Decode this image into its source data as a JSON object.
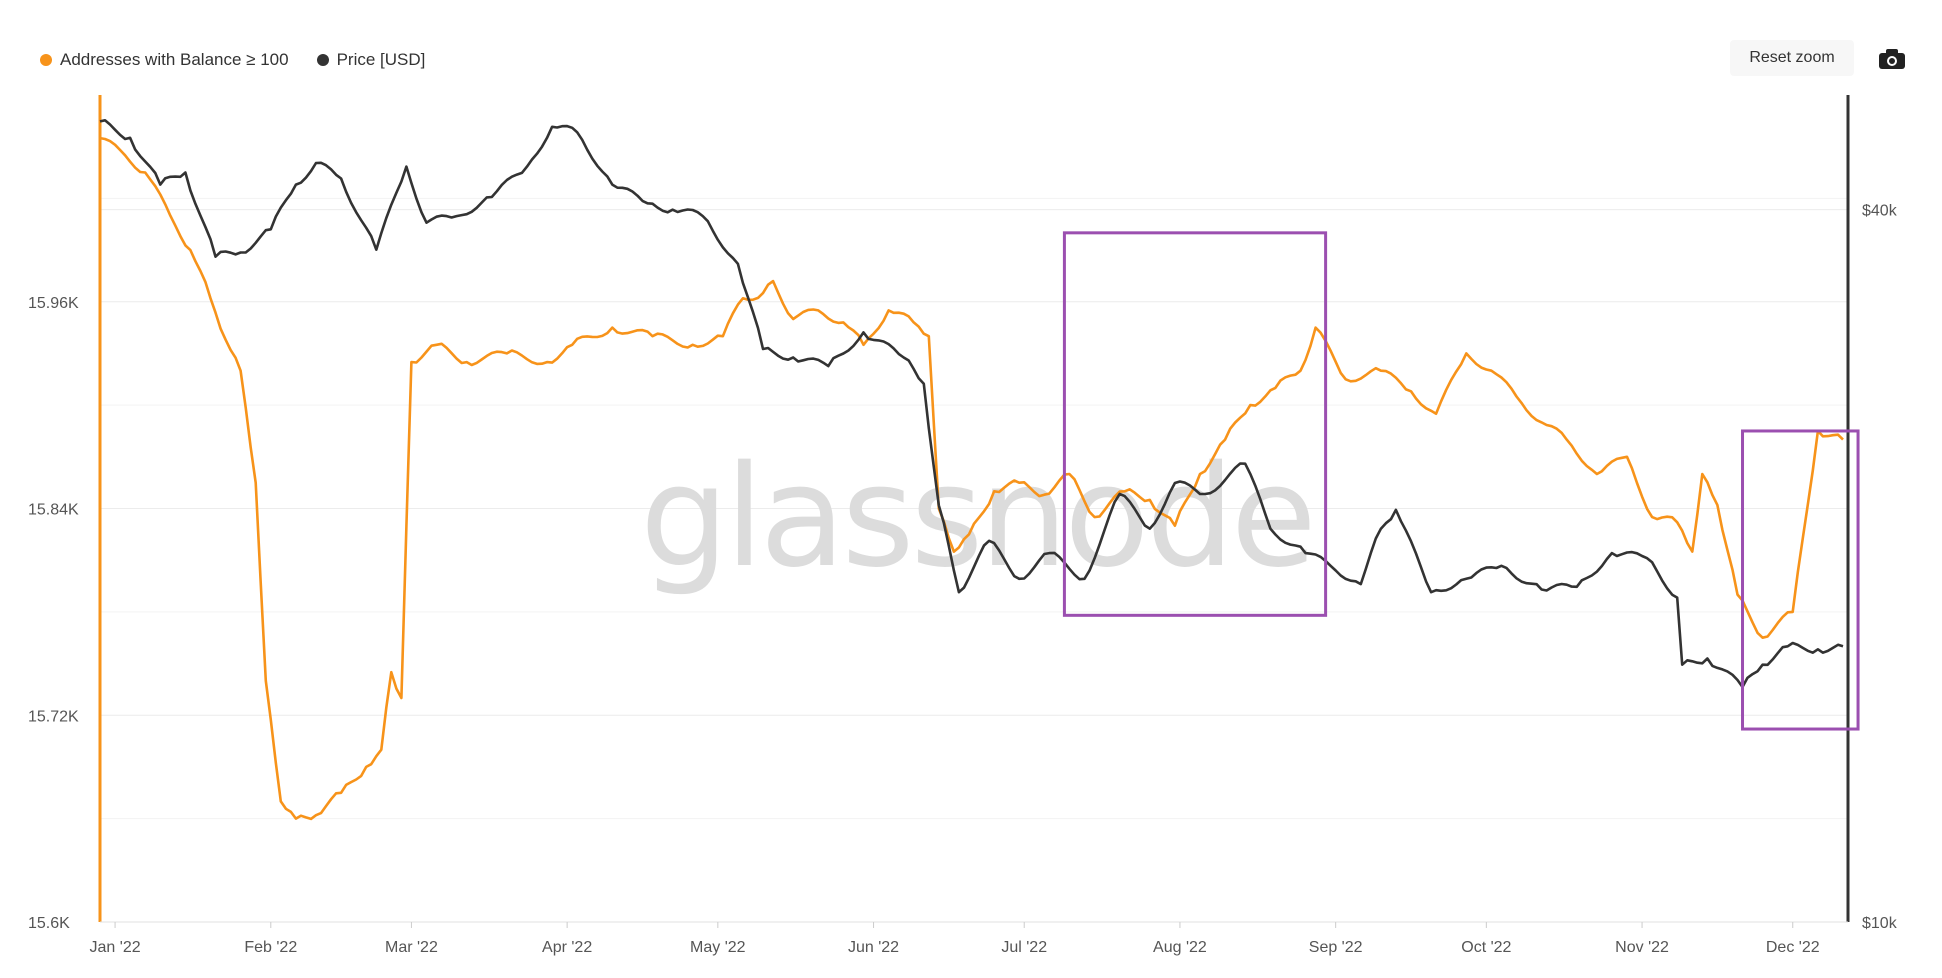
{
  "legend": [
    {
      "label": "Addresses with Balance ≥ 100",
      "color": "#F7931A"
    },
    {
      "label": "Price [USD]",
      "color": "#333333"
    }
  ],
  "controls": {
    "reset_zoom": "Reset zoom",
    "camera_icon": "camera-icon"
  },
  "watermark": "glassnode",
  "chart_data": {
    "type": "line",
    "x_ticks": [
      "Jan '22",
      "Feb '22",
      "Mar '22",
      "Apr '22",
      "May '22",
      "Jun '22",
      "Jul '22",
      "Aug '22",
      "Sep '22",
      "Oct '22",
      "Nov '22",
      "Dec '22"
    ],
    "x_range": [
      "2021-12-29",
      "2022-12-12"
    ],
    "y_left": {
      "ticks": [
        "15.6K",
        "15.72K",
        "15.84K",
        "15.96K"
      ],
      "range": [
        15600,
        16080
      ]
    },
    "y_right": {
      "ticks": [
        "$10k",
        "$40k"
      ],
      "range": [
        10000,
        50000
      ],
      "scale": "log"
    },
    "grid": true,
    "series": [
      {
        "name": "Addresses with Balance ≥ 100",
        "axis": "left",
        "color": "#F7931A",
        "points": [
          [
            "2021-12-29",
            16055
          ],
          [
            "2022-01-03",
            16045
          ],
          [
            "2022-01-07",
            16035
          ],
          [
            "2022-01-12",
            16010
          ],
          [
            "2022-01-16",
            15990
          ],
          [
            "2022-01-20",
            15962
          ],
          [
            "2022-01-23",
            15938
          ],
          [
            "2022-01-26",
            15920
          ],
          [
            "2022-01-29",
            15855
          ],
          [
            "2022-01-31",
            15740
          ],
          [
            "2022-02-03",
            15670
          ],
          [
            "2022-02-06",
            15660
          ],
          [
            "2022-02-10",
            15662
          ],
          [
            "2022-02-15",
            15675
          ],
          [
            "2022-02-20",
            15690
          ],
          [
            "2022-02-23",
            15700
          ],
          [
            "2022-02-25",
            15745
          ],
          [
            "2022-02-27",
            15730
          ],
          [
            "2022-03-01",
            15925
          ],
          [
            "2022-03-06",
            15935
          ],
          [
            "2022-03-12",
            15925
          ],
          [
            "2022-03-20",
            15930
          ],
          [
            "2022-03-28",
            15925
          ],
          [
            "2022-04-02",
            15935
          ],
          [
            "2022-04-10",
            15945
          ],
          [
            "2022-04-18",
            15940
          ],
          [
            "2022-04-26",
            15935
          ],
          [
            "2022-05-02",
            15940
          ],
          [
            "2022-05-06",
            15962
          ],
          [
            "2022-05-10",
            15965
          ],
          [
            "2022-05-12",
            15972
          ],
          [
            "2022-05-16",
            15950
          ],
          [
            "2022-05-21",
            15955
          ],
          [
            "2022-05-26",
            15948
          ],
          [
            "2022-05-30",
            15935
          ],
          [
            "2022-06-04",
            15955
          ],
          [
            "2022-06-09",
            15948
          ],
          [
            "2022-06-12",
            15940
          ],
          [
            "2022-06-14",
            15840
          ],
          [
            "2022-06-17",
            15815
          ],
          [
            "2022-06-20",
            15825
          ],
          [
            "2022-06-25",
            15850
          ],
          [
            "2022-06-30",
            15855
          ],
          [
            "2022-07-05",
            15848
          ],
          [
            "2022-07-10",
            15860
          ],
          [
            "2022-07-15",
            15835
          ],
          [
            "2022-07-21",
            15850
          ],
          [
            "2022-07-26",
            15845
          ],
          [
            "2022-07-31",
            15830
          ],
          [
            "2022-08-05",
            15860
          ],
          [
            "2022-08-10",
            15880
          ],
          [
            "2022-08-15",
            15900
          ],
          [
            "2022-08-20",
            15910
          ],
          [
            "2022-08-25",
            15920
          ],
          [
            "2022-08-28",
            15945
          ],
          [
            "2022-09-03",
            15915
          ],
          [
            "2022-09-10",
            15920
          ],
          [
            "2022-09-16",
            15908
          ],
          [
            "2022-09-21",
            15895
          ],
          [
            "2022-09-27",
            15930
          ],
          [
            "2022-10-02",
            15920
          ],
          [
            "2022-10-07",
            15905
          ],
          [
            "2022-10-12",
            15890
          ],
          [
            "2022-10-17",
            15880
          ],
          [
            "2022-10-23",
            15860
          ],
          [
            "2022-10-29",
            15870
          ],
          [
            "2022-11-03",
            15835
          ],
          [
            "2022-11-08",
            15832
          ],
          [
            "2022-11-11",
            15815
          ],
          [
            "2022-11-13",
            15860
          ],
          [
            "2022-11-16",
            15842
          ],
          [
            "2022-11-20",
            15790
          ],
          [
            "2022-11-25",
            15765
          ],
          [
            "2022-12-01",
            15780
          ],
          [
            "2022-12-06",
            15885
          ],
          [
            "2022-12-11",
            15880
          ]
        ]
      },
      {
        "name": "Price [USD]",
        "axis": "right",
        "color": "#333333",
        "points": [
          [
            "2021-12-29",
            47500
          ],
          [
            "2022-01-04",
            46000
          ],
          [
            "2022-01-10",
            42000
          ],
          [
            "2022-01-15",
            43000
          ],
          [
            "2022-01-21",
            36500
          ],
          [
            "2022-01-26",
            36800
          ],
          [
            "2022-02-01",
            38500
          ],
          [
            "2022-02-06",
            42000
          ],
          [
            "2022-02-10",
            43800
          ],
          [
            "2022-02-15",
            42500
          ],
          [
            "2022-02-22",
            37000
          ],
          [
            "2022-02-28",
            43500
          ],
          [
            "2022-03-04",
            39000
          ],
          [
            "2022-03-10",
            39500
          ],
          [
            "2022-03-17",
            41000
          ],
          [
            "2022-03-24",
            43500
          ],
          [
            "2022-03-29",
            47000
          ],
          [
            "2022-04-03",
            46500
          ],
          [
            "2022-04-10",
            42000
          ],
          [
            "2022-04-17",
            40500
          ],
          [
            "2022-04-22",
            40000
          ],
          [
            "2022-04-28",
            39500
          ],
          [
            "2022-05-05",
            36000
          ],
          [
            "2022-05-10",
            30500
          ],
          [
            "2022-05-16",
            30000
          ],
          [
            "2022-05-23",
            29500
          ],
          [
            "2022-05-30",
            31500
          ],
          [
            "2022-06-07",
            30000
          ],
          [
            "2022-06-11",
            28500
          ],
          [
            "2022-06-14",
            22500
          ],
          [
            "2022-06-18",
            19000
          ],
          [
            "2022-06-24",
            21000
          ],
          [
            "2022-06-30",
            19500
          ],
          [
            "2022-07-06",
            20500
          ],
          [
            "2022-07-13",
            19500
          ],
          [
            "2022-07-20",
            23000
          ],
          [
            "2022-07-26",
            21500
          ],
          [
            "2022-07-31",
            23500
          ],
          [
            "2022-08-06",
            23000
          ],
          [
            "2022-08-14",
            24400
          ],
          [
            "2022-08-19",
            21500
          ],
          [
            "2022-08-26",
            20500
          ],
          [
            "2022-08-31",
            20000
          ],
          [
            "2022-09-06",
            19300
          ],
          [
            "2022-09-10",
            21500
          ],
          [
            "2022-09-13",
            22300
          ],
          [
            "2022-09-20",
            19000
          ],
          [
            "2022-09-27",
            19500
          ],
          [
            "2022-10-04",
            20000
          ],
          [
            "2022-10-12",
            19100
          ],
          [
            "2022-10-19",
            19200
          ],
          [
            "2022-10-26",
            20500
          ],
          [
            "2022-11-02",
            20300
          ],
          [
            "2022-11-08",
            18800
          ],
          [
            "2022-11-09",
            16500
          ],
          [
            "2022-11-14",
            16700
          ],
          [
            "2022-11-21",
            15800
          ],
          [
            "2022-11-25",
            16500
          ],
          [
            "2022-11-30",
            17100
          ],
          [
            "2022-12-06",
            17000
          ],
          [
            "2022-12-11",
            17100
          ]
        ]
      }
    ],
    "annotations": [
      {
        "type": "rectangle",
        "color": "#9B4FB0",
        "x_range": [
          "2022-07-09",
          "2022-08-30"
        ],
        "y_range_left": [
          15778,
          16000
        ]
      },
      {
        "type": "rectangle",
        "color": "#9B4FB0",
        "x_range": [
          "2022-11-21",
          "2022-12-14"
        ],
        "y_range_left": [
          15712,
          15885
        ]
      }
    ]
  }
}
